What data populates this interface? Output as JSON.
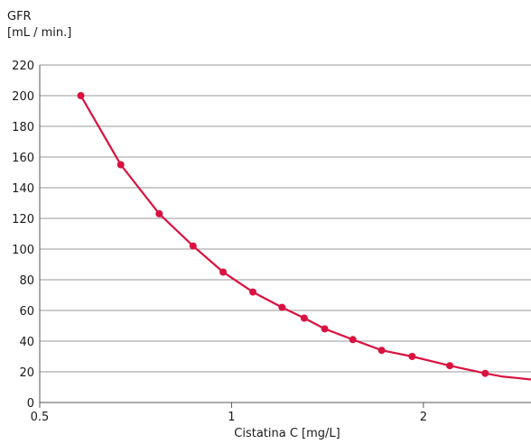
{
  "chart_data": {
    "type": "line",
    "ylabel": "GFR",
    "ylabel_unit": "[mL / min.]",
    "xlabel": "Cistatina C [mg/L]",
    "xlim": [
      0.5,
      2.95
    ],
    "ylim": [
      0,
      220
    ],
    "x_ticks": [
      0.5,
      1,
      2
    ],
    "x_tick_labels": [
      "0.5",
      "1",
      "2"
    ],
    "y_ticks": [
      0,
      20,
      40,
      60,
      80,
      100,
      120,
      140,
      160,
      180,
      200,
      220
    ],
    "grid": "horizontal",
    "legend": "none",
    "colors": {
      "series": "#d9123f",
      "grid": "#9a9a9a",
      "axis": "#555555"
    },
    "series": [
      {
        "x": [
          0.58,
          0.67,
          0.77,
          0.87,
          0.97,
          1.08,
          1.2,
          1.3,
          1.4,
          1.55,
          1.72,
          1.92,
          2.2,
          2.5
        ],
        "values": [
          200,
          155,
          123,
          102,
          85,
          72,
          62,
          55,
          48,
          41,
          34,
          30,
          24,
          19
        ]
      }
    ],
    "line_tail": {
      "x": [
        2.5,
        2.65,
        2.8,
        2.95
      ],
      "values": [
        19,
        17,
        16,
        15
      ]
    }
  }
}
